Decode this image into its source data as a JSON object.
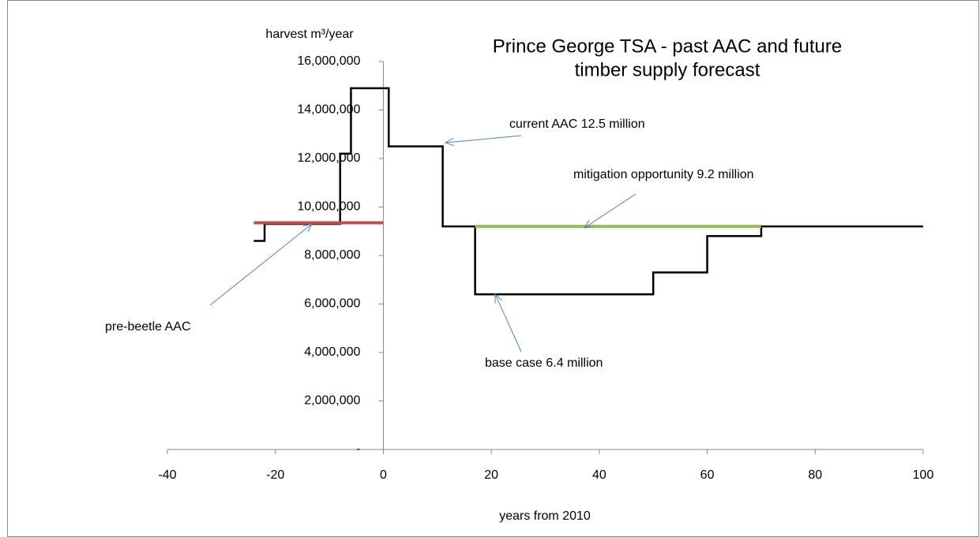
{
  "chart_data": {
    "type": "line",
    "title": [
      "Prince George TSA  - past  AAC and future",
      "timber supply forecast"
    ],
    "y_label": "harvest m³/year",
    "x_label": "years from 2010",
    "xlim": [
      -40,
      100
    ],
    "xticks": [
      -40,
      -20,
      0,
      20,
      40,
      60,
      80,
      100
    ],
    "ylim": [
      0,
      16000000
    ],
    "yticks": [
      {
        "value": 0,
        "label": "-"
      },
      {
        "value": 2000000,
        "label": "2,000,000"
      },
      {
        "value": 4000000,
        "label": "4,000,000"
      },
      {
        "value": 6000000,
        "label": "6,000,000"
      },
      {
        "value": 8000000,
        "label": "8,000,000"
      },
      {
        "value": 10000000,
        "label": "10,000,000"
      },
      {
        "value": 12000000,
        "label": "12,000,000"
      },
      {
        "value": 14000000,
        "label": "14,000,000"
      },
      {
        "value": 16000000,
        "label": "16,000,000"
      }
    ],
    "grid": false,
    "series": [
      {
        "color": "#000000",
        "x": [
          -24,
          -22,
          -22,
          -8,
          -8,
          -6,
          -6,
          1,
          1,
          11,
          11,
          17,
          17,
          50,
          50,
          60,
          60,
          70,
          70,
          100
        ],
        "values": [
          8600000,
          8600000,
          9300000,
          9300000,
          12200000,
          12200000,
          14900000,
          14900000,
          12500000,
          12500000,
          9200000,
          9200000,
          6400000,
          6400000,
          7300000,
          7300000,
          8800000,
          8800000,
          9200000,
          9200000
        ]
      },
      {
        "color": "#c0504d",
        "x": [
          -24,
          0
        ],
        "values": [
          9350000,
          9350000
        ]
      },
      {
        "color": "#9bbb59",
        "x": [
          17,
          70
        ],
        "values": [
          9200000,
          9200000
        ]
      }
    ],
    "annotations": [
      "current AAC 12.5 million",
      "mitigation opportunity 9.2 million",
      "pre-beetle AAC",
      "base case 6.4 million"
    ]
  }
}
